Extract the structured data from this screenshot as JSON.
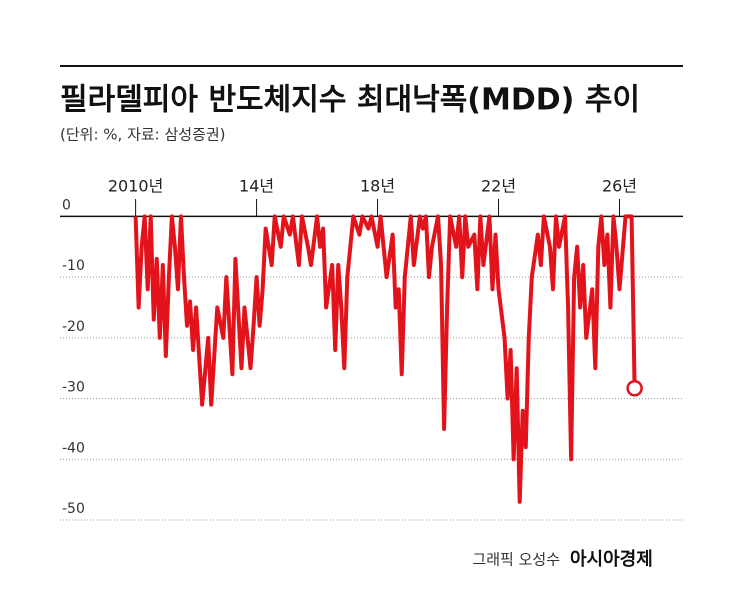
{
  "chart_data": {
    "type": "line",
    "title": "필라델피아 반도체지수 최대낙폭(MDD) 추이",
    "subtitle": "(단위: %, 자료: 삼성증권)",
    "credit": "그래픽 오성수",
    "brand": "아시아경제",
    "color": "#e3131b",
    "last_point_marker": true,
    "grid": true,
    "xlim": [
      2007.5,
      2028.1
    ],
    "ylim": [
      -50,
      6
    ],
    "xticks": [
      {
        "value": 2010,
        "label": "2010년"
      },
      {
        "value": 2014,
        "label": "14년"
      },
      {
        "value": 2018,
        "label": "18년"
      },
      {
        "value": 2022,
        "label": "22년"
      },
      {
        "value": 2026,
        "label": "26년"
      }
    ],
    "yticks": [
      0,
      -10,
      -20,
      -30,
      -40,
      -50
    ],
    "x": [
      2010.0,
      2010.1,
      2010.2,
      2010.3,
      2010.4,
      2010.5,
      2010.6,
      2010.7,
      2010.8,
      2010.9,
      2011.0,
      2011.1,
      2011.2,
      2011.3,
      2011.4,
      2011.5,
      2011.6,
      2011.7,
      2011.8,
      2011.9,
      2012.0,
      2012.2,
      2012.4,
      2012.5,
      2012.7,
      2012.9,
      2013.0,
      2013.2,
      2013.3,
      2013.5,
      2013.6,
      2013.8,
      2013.9,
      2014.0,
      2014.1,
      2014.2,
      2014.3,
      2014.5,
      2014.6,
      2014.8,
      2014.9,
      2015.1,
      2015.2,
      2015.4,
      2015.5,
      2015.7,
      2015.8,
      2016.0,
      2016.1,
      2016.2,
      2016.3,
      2016.5,
      2016.6,
      2016.7,
      2016.8,
      2016.9,
      2017.0,
      2017.1,
      2017.2,
      2017.4,
      2017.5,
      2017.7,
      2017.8,
      2018.0,
      2018.1,
      2018.3,
      2018.5,
      2018.6,
      2018.7,
      2018.8,
      2018.9,
      2019.1,
      2019.2,
      2019.4,
      2019.5,
      2019.6,
      2019.7,
      2019.8,
      2020.0,
      2020.1,
      2020.2,
      2020.3,
      2020.4,
      2020.6,
      2020.7,
      2020.8,
      2020.9,
      2021.0,
      2021.2,
      2021.3,
      2021.4,
      2021.5,
      2021.7,
      2021.8,
      2021.9,
      2022.0,
      2022.2,
      2022.3,
      2022.4,
      2022.5,
      2022.6,
      2022.7,
      2022.8,
      2022.9,
      2023.0,
      2023.1,
      2023.3,
      2023.4,
      2023.5,
      2023.7,
      2023.8,
      2023.9,
      2024.0,
      2024.2,
      2024.3,
      2024.4,
      2024.5,
      2024.6,
      2024.7,
      2024.8,
      2024.9,
      2025.1,
      2025.2,
      2025.3,
      2025.4,
      2025.5,
      2025.6,
      2025.7,
      2025.8,
      2025.9,
      2026.0,
      2026.2,
      2026.4,
      2026.5
    ],
    "values": [
      0,
      -15,
      -5,
      0,
      -12,
      0,
      -17,
      -7,
      -20,
      -8,
      -23,
      -10,
      0,
      -5,
      -12,
      0,
      -10,
      -18,
      -14,
      -22,
      -15,
      -31,
      -20,
      -31,
      -15,
      -20,
      -10,
      -26,
      -7,
      -25,
      -15,
      -25,
      -18,
      -10,
      -18,
      -12,
      -2,
      -8,
      0,
      -5,
      0,
      -3,
      0,
      -8,
      0,
      -5,
      -8,
      0,
      -5,
      -2,
      -15,
      -8,
      -22,
      -8,
      -15,
      -25,
      -10,
      -5,
      0,
      -3,
      0,
      -2,
      0,
      -5,
      0,
      -10,
      -3,
      -15,
      -12,
      -26,
      -10,
      0,
      -8,
      0,
      -2,
      0,
      -10,
      -5,
      0,
      -8,
      -35,
      -15,
      0,
      -5,
      0,
      -10,
      0,
      -5,
      -3,
      -12,
      0,
      -8,
      0,
      -12,
      -3,
      -12,
      -20,
      -30,
      -22,
      -40,
      -25,
      -47,
      -32,
      -38,
      -20,
      -10,
      -3,
      -8,
      0,
      -5,
      -12,
      0,
      -5,
      0,
      -15,
      -40,
      -10,
      -5,
      -15,
      -8,
      -20,
      -12,
      -25,
      -5,
      0,
      -8,
      -3,
      -15,
      0,
      -5,
      -12,
      0,
      0,
      -28.3
    ]
  }
}
